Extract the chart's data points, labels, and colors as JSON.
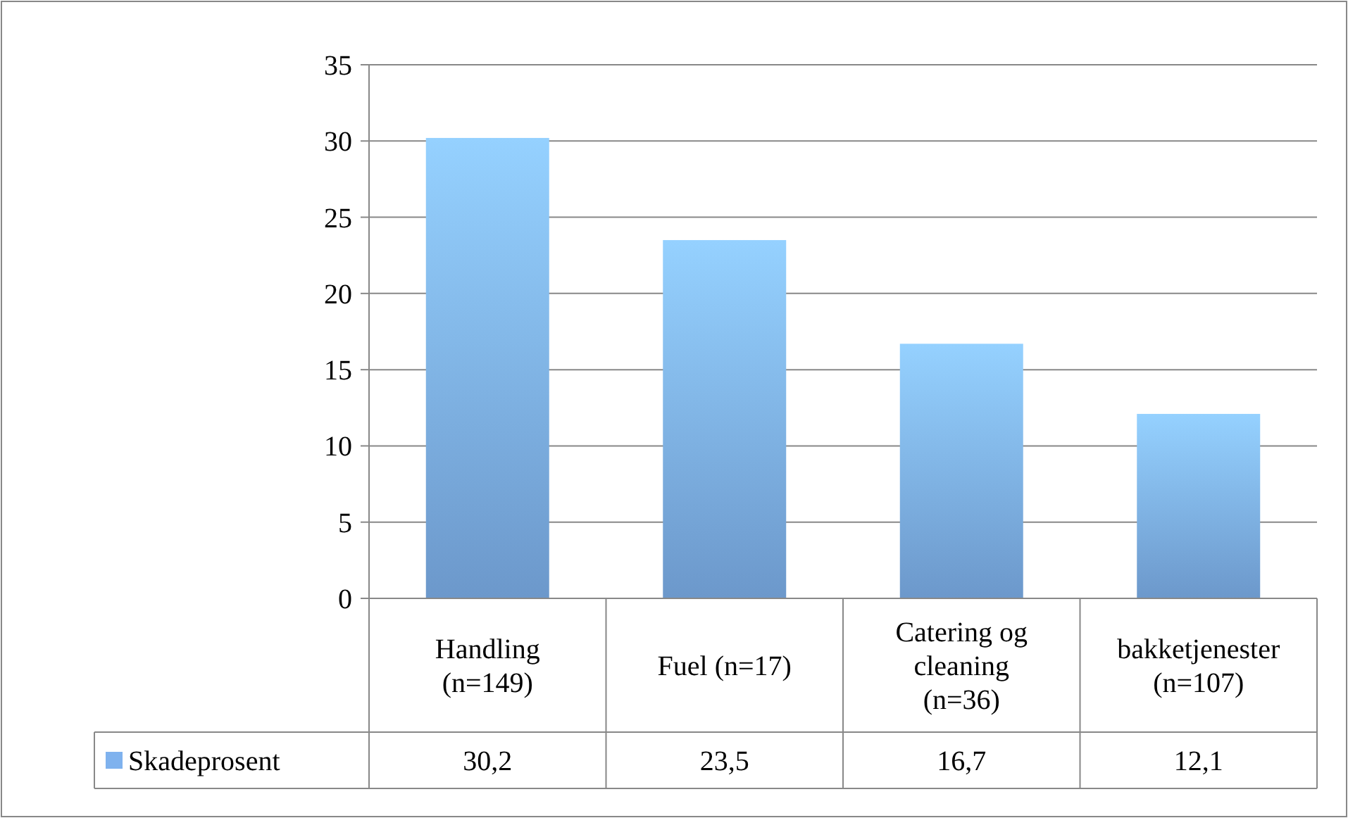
{
  "chart_data": {
    "type": "bar",
    "categories": [
      "Handling (n=149)",
      "Fuel (n=17)",
      "Catering og cleaning (n=36)",
      "bakketjenester (n=107)"
    ],
    "series": [
      {
        "name": "Skadeprosent",
        "color": "#7fb2ee",
        "values": [
          30.2,
          23.5,
          16.7,
          12.1
        ]
      }
    ],
    "value_labels": [
      "30,2",
      "23,5",
      "16,7",
      "12,1"
    ],
    "ylim": [
      0,
      35
    ],
    "yticks": [
      0,
      5,
      10,
      15,
      20,
      25,
      30,
      35
    ],
    "grid": "y",
    "legend": "bottom"
  }
}
